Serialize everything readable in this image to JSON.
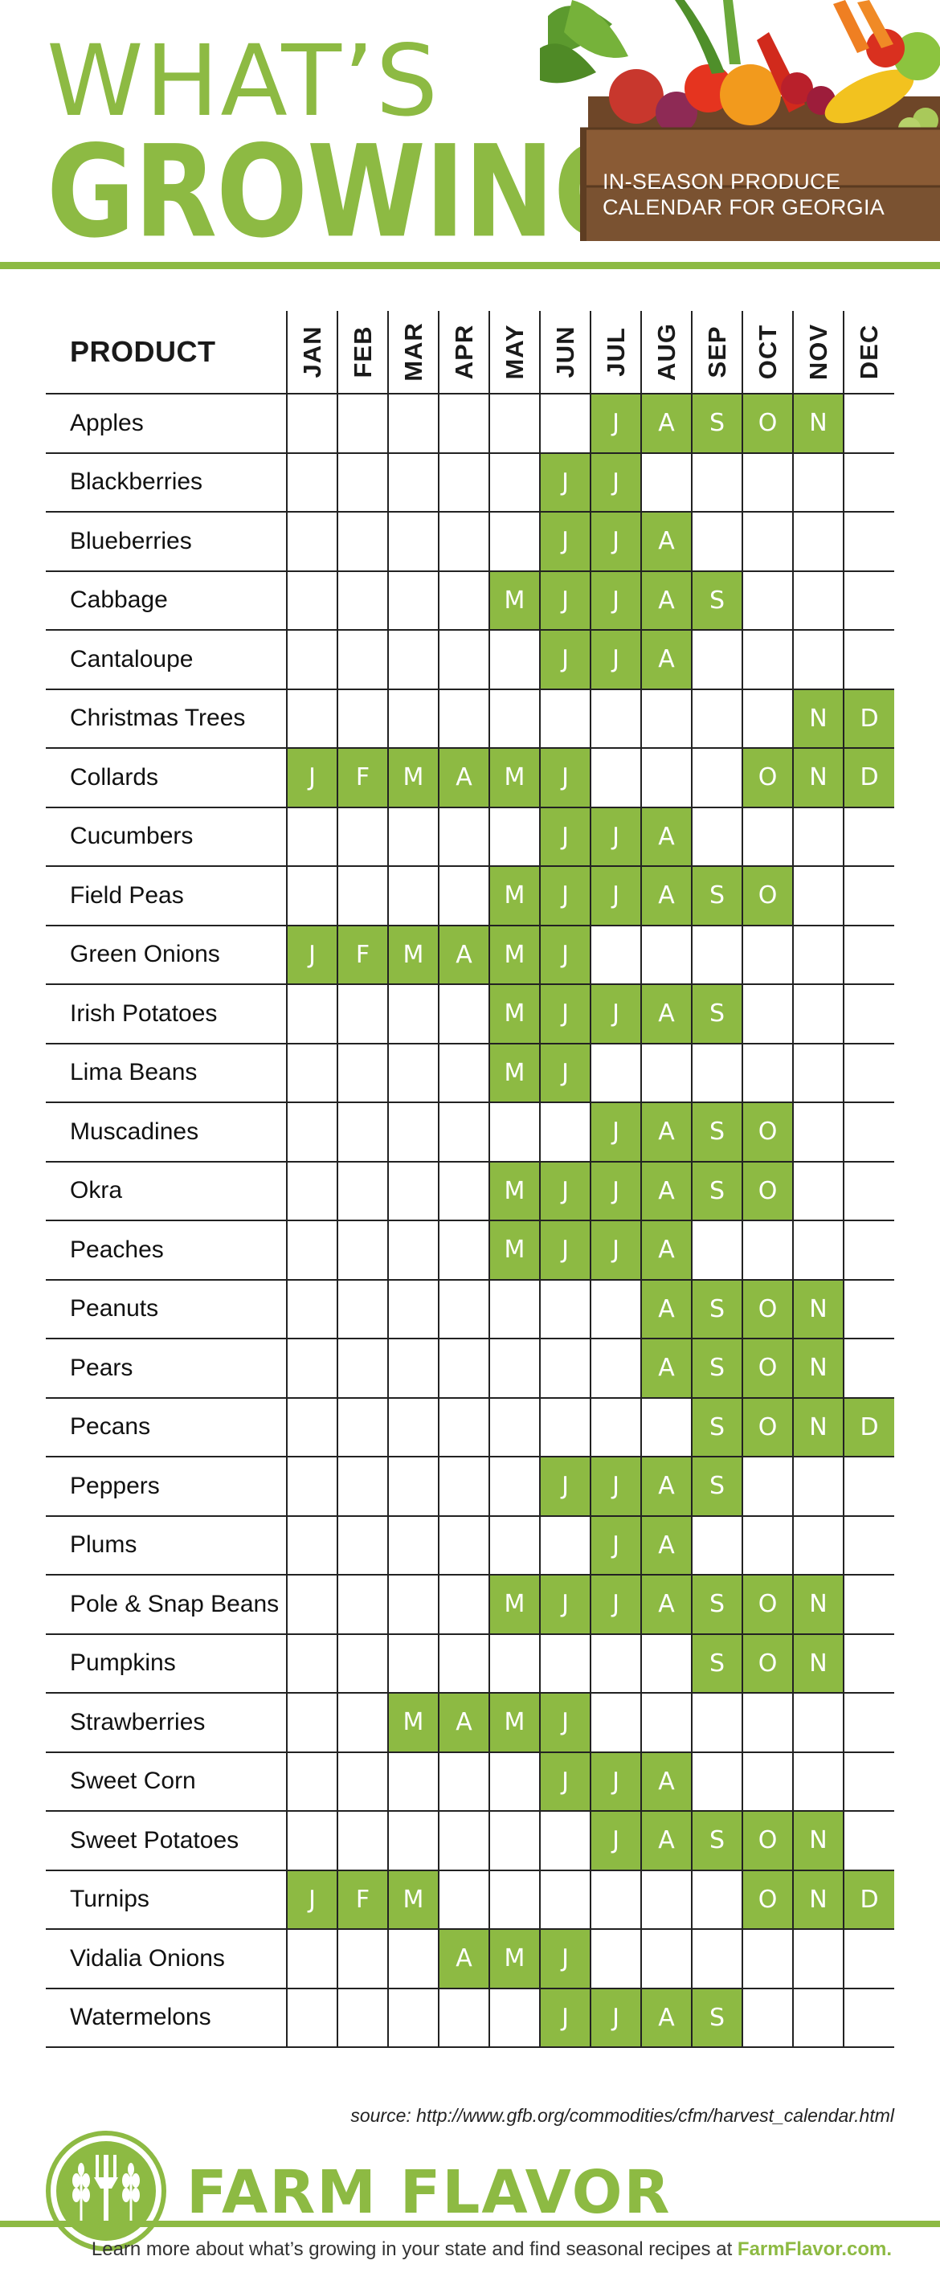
{
  "header": {
    "title_line1": "WHAT’S",
    "title_line2": "GROWING?",
    "subtitle_line1": "IN-SEASON PRODUCE",
    "subtitle_line2": "CALENDAR FOR GEORGIA"
  },
  "table": {
    "product_header": "PRODUCT",
    "months": [
      "JAN",
      "FEB",
      "MAR",
      "APR",
      "MAY",
      "JUN",
      "JUL",
      "AUG",
      "SEP",
      "OCT",
      "NOV",
      "DEC"
    ],
    "month_letters": [
      "J",
      "F",
      "M",
      "A",
      "M",
      "J",
      "J",
      "A",
      "S",
      "O",
      "N",
      "D"
    ],
    "rows": [
      {
        "product": "Apples",
        "in_season": [
          7,
          8,
          9,
          10,
          11
        ]
      },
      {
        "product": "Blackberries",
        "in_season": [
          6,
          7
        ]
      },
      {
        "product": "Blueberries",
        "in_season": [
          6,
          7,
          8
        ]
      },
      {
        "product": "Cabbage",
        "in_season": [
          5,
          6,
          7,
          8,
          9
        ]
      },
      {
        "product": "Cantaloupe",
        "in_season": [
          6,
          7,
          8
        ]
      },
      {
        "product": "Christmas Trees",
        "in_season": [
          11,
          12
        ]
      },
      {
        "product": "Collards",
        "in_season": [
          1,
          2,
          3,
          4,
          5,
          6,
          10,
          11,
          12
        ]
      },
      {
        "product": "Cucumbers",
        "in_season": [
          6,
          7,
          8
        ]
      },
      {
        "product": "Field Peas",
        "in_season": [
          5,
          6,
          7,
          8,
          9,
          10
        ]
      },
      {
        "product": "Green Onions",
        "in_season": [
          1,
          2,
          3,
          4,
          5,
          6
        ]
      },
      {
        "product": "Irish Potatoes",
        "in_season": [
          5,
          6,
          7,
          8,
          9
        ]
      },
      {
        "product": "Lima Beans",
        "in_season": [
          5,
          6
        ]
      },
      {
        "product": "Muscadines",
        "in_season": [
          7,
          8,
          9,
          10
        ]
      },
      {
        "product": "Okra",
        "in_season": [
          5,
          6,
          7,
          8,
          9,
          10
        ]
      },
      {
        "product": "Peaches",
        "in_season": [
          5,
          6,
          7,
          8
        ]
      },
      {
        "product": "Peanuts",
        "in_season": [
          8,
          9,
          10,
          11
        ]
      },
      {
        "product": "Pears",
        "in_season": [
          8,
          9,
          10,
          11
        ]
      },
      {
        "product": "Pecans",
        "in_season": [
          9,
          10,
          11,
          12
        ]
      },
      {
        "product": "Peppers",
        "in_season": [
          6,
          7,
          8,
          9
        ]
      },
      {
        "product": "Plums",
        "in_season": [
          7,
          8
        ]
      },
      {
        "product": "Pole & Snap Beans",
        "in_season": [
          5,
          6,
          7,
          8,
          9,
          10,
          11
        ]
      },
      {
        "product": "Pumpkins",
        "in_season": [
          9,
          10,
          11
        ]
      },
      {
        "product": "Strawberries",
        "in_season": [
          3,
          4,
          5,
          6
        ]
      },
      {
        "product": "Sweet Corn",
        "in_season": [
          6,
          7,
          8
        ]
      },
      {
        "product": "Sweet Potatoes",
        "in_season": [
          7,
          8,
          9,
          10,
          11
        ]
      },
      {
        "product": "Turnips",
        "in_season": [
          1,
          2,
          3,
          10,
          11,
          12
        ]
      },
      {
        "product": "Vidalia Onions",
        "in_season": [
          4,
          5,
          6
        ]
      },
      {
        "product": "Watermelons",
        "in_season": [
          6,
          7,
          8,
          9
        ]
      }
    ]
  },
  "source": "source: http://www.gfb.org/commodities/cfm/harvest_calendar.html",
  "footer": {
    "brand_word1": "FARM",
    "brand_word2": "FLAVOR",
    "tagline": "Learn more about what’s growing in your state and find seasonal recipes at",
    "site": "FarmFlavor.com."
  },
  "colors": {
    "accent_green": "#8dba43",
    "grid_line": "#222222",
    "crate_wood": "#7a5231"
  }
}
